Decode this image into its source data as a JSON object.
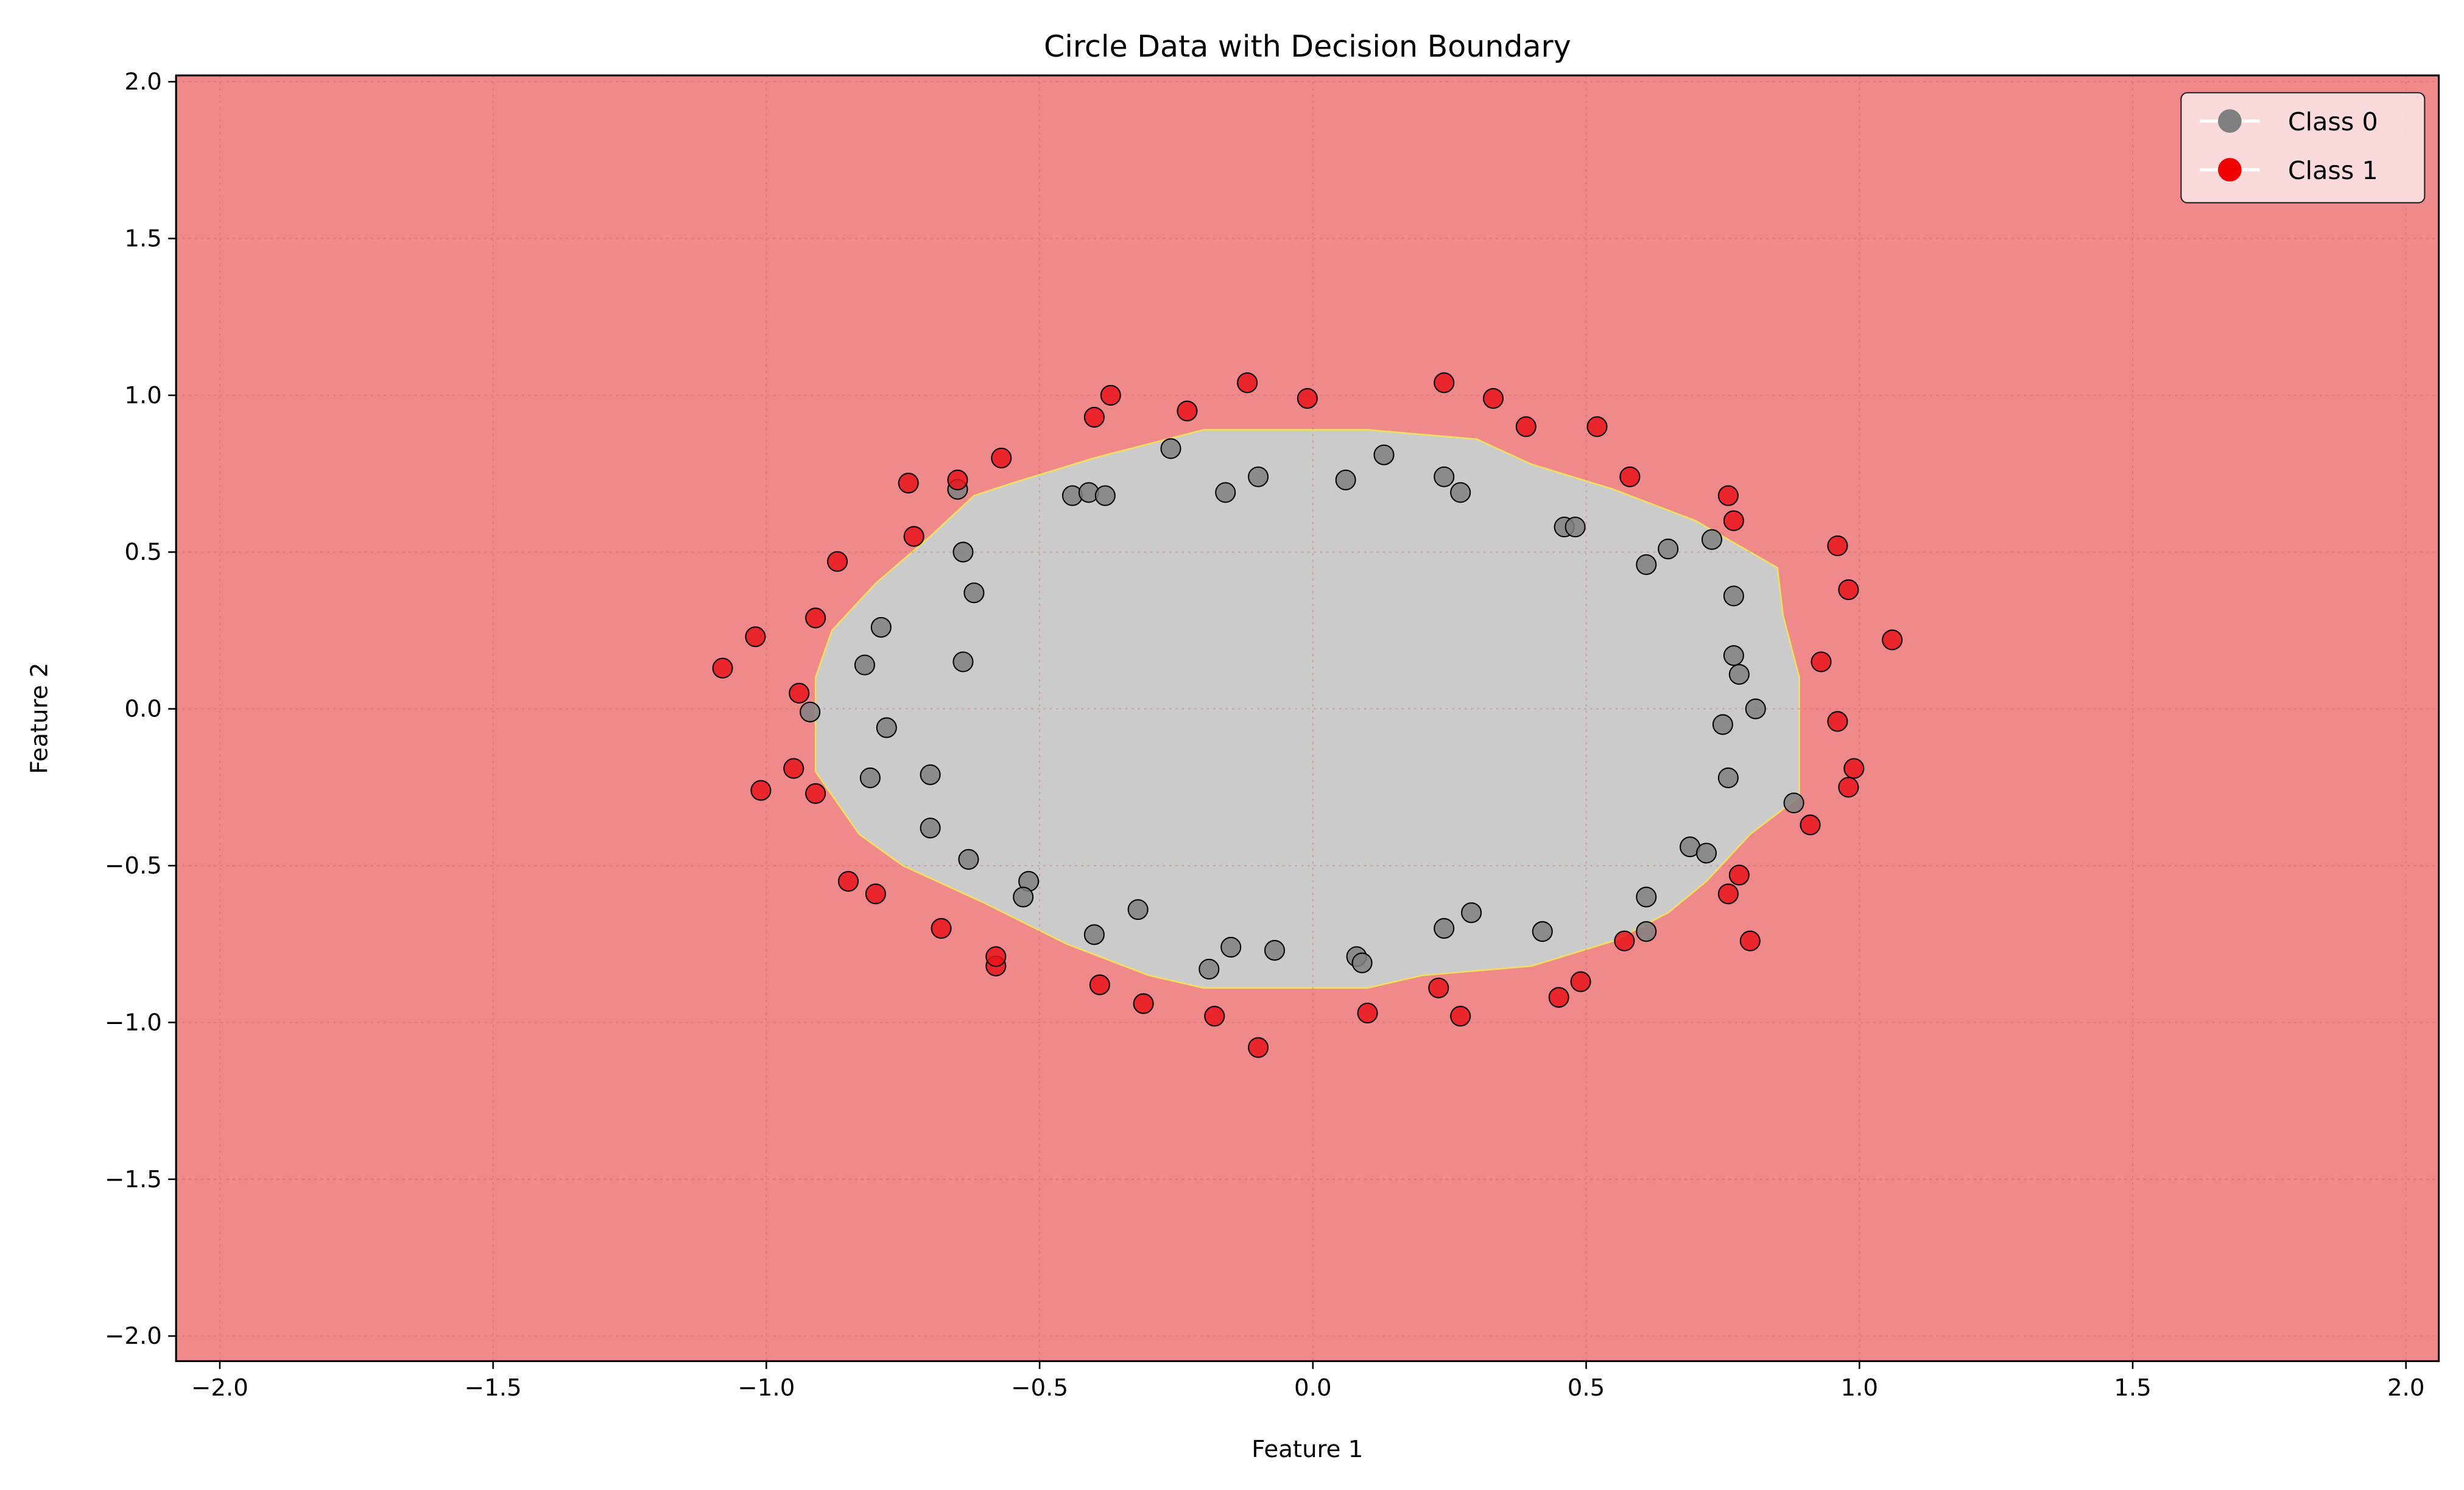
{
  "chart_data": {
    "type": "scatter",
    "title": "Circle Data with Decision Boundary",
    "xlabel": "Feature 1",
    "ylabel": "Feature 2",
    "xlim": [
      -2.08,
      2.06
    ],
    "ylim": [
      -2.08,
      2.02
    ],
    "xticks": [
      -2.0,
      -1.5,
      -1.0,
      -0.5,
      0.0,
      0.5,
      1.0,
      1.5,
      2.0
    ],
    "yticks": [
      -2.0,
      -1.5,
      -1.0,
      -0.5,
      0.0,
      0.5,
      1.0,
      1.5,
      2.0
    ],
    "xtick_labels": [
      "−2.0",
      "−1.5",
      "−1.0",
      "−0.5",
      "0.0",
      "0.5",
      "1.0",
      "1.5",
      "2.0"
    ],
    "ytick_labels": [
      "−2.0",
      "−1.5",
      "−1.0",
      "−0.5",
      "0.0",
      "0.5",
      "1.0",
      "1.5",
      "2.0"
    ],
    "grid": true,
    "legend_position": "top-right",
    "colors": {
      "class0": "#808080",
      "class1": "#e8141a",
      "region1": "#f08a8a",
      "region0": "#cbcbcb",
      "boundary": "#f0e060"
    },
    "decision_boundary": [
      [
        -0.91,
        0.1
      ],
      [
        -0.91,
        -0.2
      ],
      [
        -0.83,
        -0.4
      ],
      [
        -0.75,
        -0.5
      ],
      [
        -0.6,
        -0.62
      ],
      [
        -0.45,
        -0.75
      ],
      [
        -0.3,
        -0.85
      ],
      [
        -0.2,
        -0.89
      ],
      [
        0.1,
        -0.89
      ],
      [
        0.2,
        -0.85
      ],
      [
        0.4,
        -0.82
      ],
      [
        0.55,
        -0.74
      ],
      [
        0.65,
        -0.65
      ],
      [
        0.72,
        -0.55
      ],
      [
        0.8,
        -0.4
      ],
      [
        0.89,
        -0.28
      ],
      [
        0.89,
        0.1
      ],
      [
        0.86,
        0.3
      ],
      [
        0.85,
        0.45
      ],
      [
        0.7,
        0.6
      ],
      [
        0.55,
        0.7
      ],
      [
        0.4,
        0.78
      ],
      [
        0.3,
        0.86
      ],
      [
        0.1,
        0.89
      ],
      [
        -0.2,
        0.89
      ],
      [
        -0.4,
        0.8
      ],
      [
        -0.55,
        0.72
      ],
      [
        -0.62,
        0.68
      ],
      [
        -0.7,
        0.55
      ],
      [
        -0.8,
        0.4
      ],
      [
        -0.88,
        0.25
      ]
    ],
    "series": [
      {
        "name": "Class 0",
        "points": [
          [
            -0.92,
            -0.01
          ],
          [
            -0.82,
            0.14
          ],
          [
            -0.79,
            0.26
          ],
          [
            -0.78,
            -0.06
          ],
          [
            -0.81,
            -0.22
          ],
          [
            -0.7,
            -0.21
          ],
          [
            -0.7,
            -0.38
          ],
          [
            -0.63,
            -0.48
          ],
          [
            -0.64,
            0.15
          ],
          [
            -0.62,
            0.37
          ],
          [
            -0.64,
            0.5
          ],
          [
            -0.65,
            0.7
          ],
          [
            -0.44,
            0.68
          ],
          [
            -0.41,
            0.69
          ],
          [
            -0.38,
            0.68
          ],
          [
            -0.26,
            0.83
          ],
          [
            -0.16,
            0.69
          ],
          [
            -0.1,
            0.74
          ],
          [
            0.06,
            0.73
          ],
          [
            0.13,
            0.81
          ],
          [
            0.24,
            0.74
          ],
          [
            0.27,
            0.69
          ],
          [
            0.46,
            0.58
          ],
          [
            0.48,
            0.58
          ],
          [
            0.61,
            0.46
          ],
          [
            0.65,
            0.51
          ],
          [
            0.73,
            0.54
          ],
          [
            0.77,
            0.36
          ],
          [
            0.77,
            0.17
          ],
          [
            0.78,
            0.11
          ],
          [
            0.81,
            0.0
          ],
          [
            0.75,
            -0.05
          ],
          [
            0.76,
            -0.22
          ],
          [
            0.88,
            -0.3
          ],
          [
            0.69,
            -0.44
          ],
          [
            0.72,
            -0.46
          ],
          [
            0.61,
            -0.6
          ],
          [
            0.61,
            -0.71
          ],
          [
            0.42,
            -0.71
          ],
          [
            0.29,
            -0.65
          ],
          [
            0.24,
            -0.7
          ],
          [
            0.08,
            -0.79
          ],
          [
            0.09,
            -0.81
          ],
          [
            -0.07,
            -0.77
          ],
          [
            -0.15,
            -0.76
          ],
          [
            -0.19,
            -0.83
          ],
          [
            -0.32,
            -0.64
          ],
          [
            -0.4,
            -0.72
          ],
          [
            -0.52,
            -0.55
          ],
          [
            -0.53,
            -0.6
          ]
        ]
      },
      {
        "name": "Class 1",
        "points": [
          [
            -1.08,
            0.13
          ],
          [
            -1.02,
            0.23
          ],
          [
            -0.87,
            0.47
          ],
          [
            -0.91,
            0.29
          ],
          [
            -0.94,
            0.05
          ],
          [
            -0.74,
            0.72
          ],
          [
            -0.73,
            0.55
          ],
          [
            -0.65,
            0.73
          ],
          [
            -0.57,
            0.8
          ],
          [
            -0.4,
            0.93
          ],
          [
            -0.37,
            1.0
          ],
          [
            -0.23,
            0.95
          ],
          [
            -0.12,
            1.04
          ],
          [
            -0.01,
            0.99
          ],
          [
            0.24,
            1.04
          ],
          [
            0.33,
            0.99
          ],
          [
            0.39,
            0.9
          ],
          [
            0.52,
            0.9
          ],
          [
            0.58,
            0.74
          ],
          [
            0.76,
            0.68
          ],
          [
            0.77,
            0.6
          ],
          [
            0.96,
            0.52
          ],
          [
            0.98,
            0.38
          ],
          [
            1.06,
            0.22
          ],
          [
            0.93,
            0.15
          ],
          [
            0.96,
            -0.04
          ],
          [
            0.99,
            -0.19
          ],
          [
            0.98,
            -0.25
          ],
          [
            0.91,
            -0.37
          ],
          [
            0.78,
            -0.53
          ],
          [
            0.76,
            -0.59
          ],
          [
            0.8,
            -0.74
          ],
          [
            0.57,
            -0.74
          ],
          [
            0.49,
            -0.87
          ],
          [
            0.45,
            -0.92
          ],
          [
            0.23,
            -0.89
          ],
          [
            0.27,
            -0.98
          ],
          [
            0.1,
            -0.97
          ],
          [
            -0.1,
            -1.08
          ],
          [
            -0.18,
            -0.98
          ],
          [
            -0.31,
            -0.94
          ],
          [
            -0.39,
            -0.88
          ],
          [
            -0.58,
            -0.82
          ],
          [
            -0.58,
            -0.79
          ],
          [
            -0.68,
            -0.7
          ],
          [
            -0.8,
            -0.59
          ],
          [
            -0.85,
            -0.55
          ],
          [
            -0.91,
            -0.27
          ],
          [
            -0.95,
            -0.19
          ],
          [
            -1.01,
            -0.26
          ]
        ]
      }
    ],
    "legend": [
      "Class 0",
      "Class 1"
    ]
  }
}
